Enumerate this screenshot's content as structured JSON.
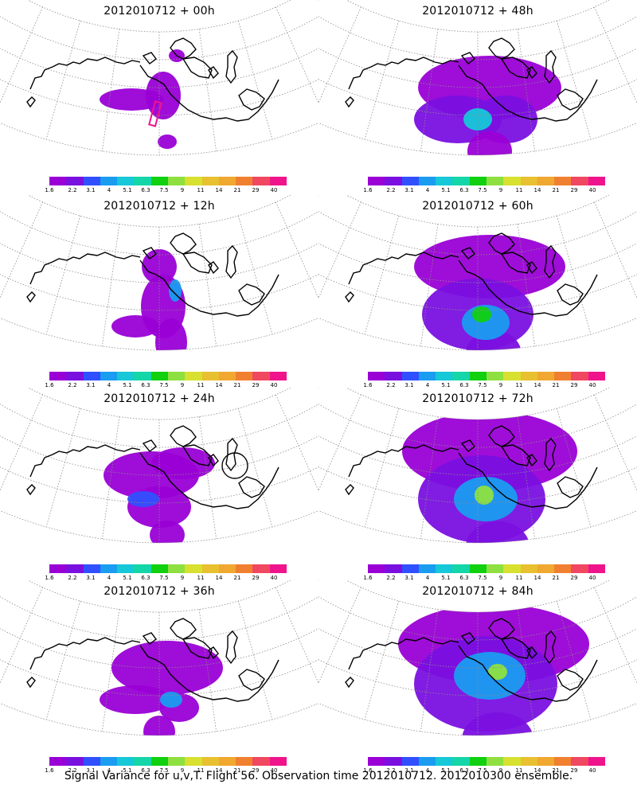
{
  "colorbar": {
    "colors": [
      "#9a00d6",
      "#7a10e0",
      "#3050ff",
      "#1a9cf0",
      "#16c8d8",
      "#14d6a8",
      "#10d010",
      "#8ee040",
      "#d8e030",
      "#e8c030",
      "#f0a830",
      "#f08030",
      "#f04860",
      "#f0148c"
    ],
    "labels": [
      "1.6",
      "2.2",
      "3.1",
      "4",
      "5.1",
      "6.3",
      "7.5",
      "9",
      "11",
      "14",
      "21",
      "29",
      "40"
    ]
  },
  "panels": [
    {
      "title": "2012010712 + 00h",
      "spread": 0,
      "box": true,
      "circle": false
    },
    {
      "title": "2012010712 + 48h",
      "spread": 4,
      "box": false,
      "circle": false
    },
    {
      "title": "2012010712 + 12h",
      "spread": 1,
      "box": false,
      "circle": false
    },
    {
      "title": "2012010712 + 60h",
      "spread": 5,
      "box": false,
      "circle": false
    },
    {
      "title": "2012010712 + 24h",
      "spread": 2,
      "box": false,
      "circle": true
    },
    {
      "title": "2012010712 + 72h",
      "spread": 6,
      "box": false,
      "circle": false
    },
    {
      "title": "2012010712 + 36h",
      "spread": 3,
      "box": false,
      "circle": false
    },
    {
      "title": "2012010712 + 84h",
      "spread": 7,
      "box": false,
      "circle": false
    }
  ],
  "caption": "Signal Variance for u,v,T. Flight 56. Observation time 2012010712. 2012010300 ensemble.",
  "map": {
    "projection": "polar stereographic sector",
    "graticule": "dotted gray",
    "coastlines": "black"
  }
}
